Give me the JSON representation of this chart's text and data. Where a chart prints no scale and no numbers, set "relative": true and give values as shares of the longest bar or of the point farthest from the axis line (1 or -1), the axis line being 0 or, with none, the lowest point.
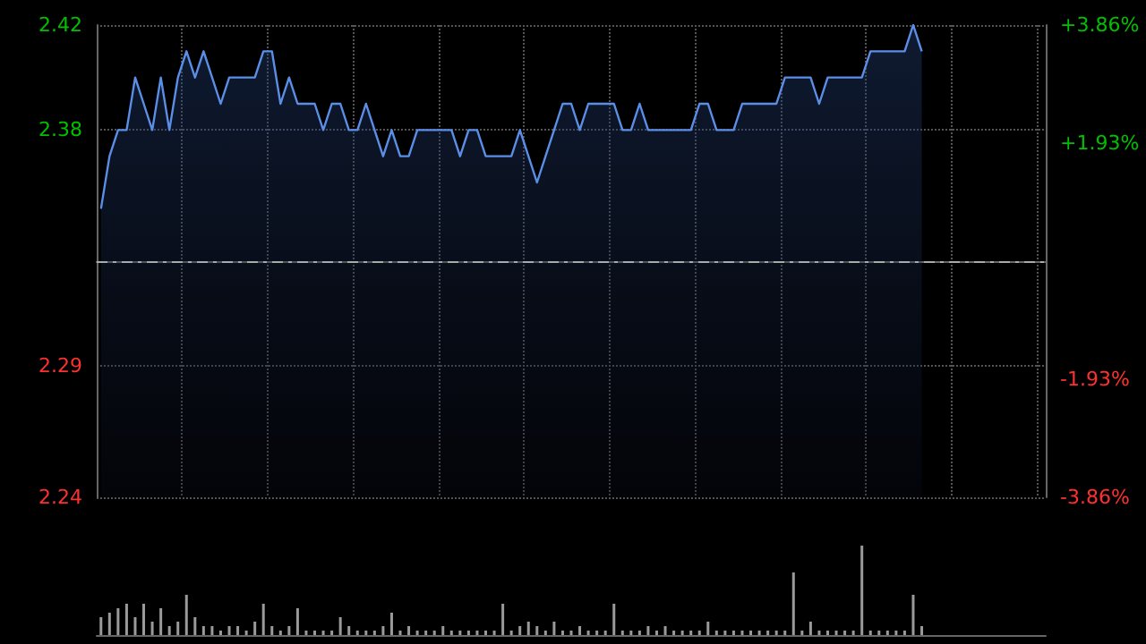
{
  "chart_data": [
    {
      "type": "area",
      "categories": [
        null,
        null,
        null,
        null,
        null,
        null,
        null,
        null,
        null,
        null,
        null,
        null,
        null,
        null,
        null,
        null,
        null,
        null,
        null,
        null,
        null,
        null,
        null,
        null,
        null,
        null,
        null,
        null,
        null,
        null,
        null,
        null,
        null,
        null,
        null,
        null,
        null,
        null,
        null,
        null,
        null,
        null,
        null,
        null,
        null,
        null,
        null,
        null,
        null,
        null,
        null,
        null,
        null,
        null,
        null,
        null,
        null,
        null,
        null,
        null,
        null,
        null,
        null,
        null,
        null,
        null,
        null,
        null,
        null,
        null,
        null,
        null,
        null,
        null,
        null,
        null,
        null,
        null,
        null,
        null,
        null,
        null,
        null,
        null,
        null,
        null,
        null,
        null,
        null,
        null,
        null,
        null,
        null,
        null,
        null,
        null,
        null
      ],
      "series": [
        {
          "color": "#5b8ee6",
          "values": [
            2.35,
            2.37,
            2.38,
            2.38,
            2.4,
            2.39,
            2.38,
            2.4,
            2.38,
            2.4,
            2.41,
            2.4,
            2.41,
            2.4,
            2.39,
            2.4,
            2.4,
            2.4,
            2.4,
            2.41,
            2.41,
            2.39,
            2.4,
            2.39,
            2.39,
            2.39,
            2.38,
            2.39,
            2.39,
            2.38,
            2.38,
            2.39,
            2.38,
            2.37,
            2.38,
            2.37,
            2.37,
            2.38,
            2.38,
            2.38,
            2.38,
            2.38,
            2.37,
            2.38,
            2.38,
            2.37,
            2.37,
            2.37,
            2.37,
            2.38,
            2.37,
            2.36,
            2.37,
            2.38,
            2.39,
            2.39,
            2.38,
            2.39,
            2.39,
            2.39,
            2.39,
            2.38,
            2.38,
            2.39,
            2.38,
            2.38,
            2.38,
            2.38,
            2.38,
            2.38,
            2.39,
            2.39,
            2.38,
            2.38,
            2.38,
            2.39,
            2.39,
            2.39,
            2.39,
            2.39,
            2.4,
            2.4,
            2.4,
            2.4,
            2.39,
            2.4,
            2.4,
            2.4,
            2.4,
            2.4,
            2.41,
            2.41,
            2.41,
            2.41,
            2.41,
            2.42,
            2.41
          ]
        }
      ],
      "ylim": [
        2.24,
        2.42
      ],
      "yticks": [
        2.42,
        2.38,
        2.29,
        2.24
      ],
      "y2lim": [
        -3.86,
        3.86
      ],
      "y2ticks": [
        {
          "value": 3.86,
          "label": "+3.86%"
        },
        {
          "value": 1.93,
          "label": "+1.93%"
        },
        {
          "value": 0,
          "label": null
        },
        {
          "value": -1.93,
          "label": "-1.93%"
        },
        {
          "value": -3.86,
          "label": "-3.86%"
        }
      ],
      "ref_lines": [
        {
          "axis": "y",
          "value": 2.33,
          "color": "#aaaaaa",
          "line_style": "dashed"
        }
      ],
      "grid": true,
      "tick_labels": "y"
    },
    {
      "type": "bar",
      "relative": true,
      "categories": [
        null,
        null,
        null,
        null,
        null,
        null,
        null,
        null,
        null,
        null,
        null,
        null,
        null,
        null,
        null,
        null,
        null,
        null,
        null,
        null,
        null,
        null,
        null,
        null,
        null,
        null,
        null,
        null,
        null,
        null,
        null,
        null,
        null,
        null,
        null,
        null,
        null,
        null,
        null,
        null,
        null,
        null,
        null,
        null,
        null,
        null,
        null,
        null,
        null,
        null,
        null,
        null,
        null,
        null,
        null,
        null,
        null,
        null,
        null,
        null,
        null,
        null,
        null,
        null,
        null,
        null,
        null,
        null,
        null,
        null,
        null,
        null,
        null,
        null,
        null,
        null,
        null,
        null,
        null,
        null,
        null,
        null,
        null,
        null,
        null,
        null,
        null,
        null,
        null,
        null,
        null,
        null,
        null,
        null,
        null,
        null,
        null
      ],
      "series": [
        {
          "color": "#9a9a9a",
          "values": [
            0.2,
            0.25,
            0.3,
            0.35,
            0.2,
            0.35,
            0.15,
            0.3,
            0.1,
            0.15,
            0.45,
            0.2,
            0.1,
            0.1,
            0.05,
            0.1,
            0.1,
            0.05,
            0.15,
            0.35,
            0.1,
            0.05,
            0.1,
            0.3,
            0.05,
            0.05,
            0.05,
            0.05,
            0.2,
            0.1,
            0.05,
            0.05,
            0.05,
            0.1,
            0.25,
            0.05,
            0.1,
            0.05,
            0.05,
            0.05,
            0.1,
            0.05,
            0.05,
            0.05,
            0.05,
            0.05,
            0.05,
            0.35,
            0.05,
            0.1,
            0.15,
            0.1,
            0.05,
            0.15,
            0.05,
            0.05,
            0.1,
            0.05,
            0.05,
            0.05,
            0.35,
            0.05,
            0.05,
            0.05,
            0.1,
            0.05,
            0.1,
            0.05,
            0.05,
            0.05,
            0.05,
            0.15,
            0.05,
            0.05,
            0.05,
            0.05,
            0.05,
            0.05,
            0.05,
            0.05,
            0.05,
            0.7,
            0.05,
            0.15,
            0.05,
            0.05,
            0.05,
            0.05,
            0.05,
            1,
            0.05,
            0.05,
            0.05,
            0.05,
            0.05,
            0.45,
            0.1
          ]
        }
      ],
      "tick_labels": false
    }
  ]
}
